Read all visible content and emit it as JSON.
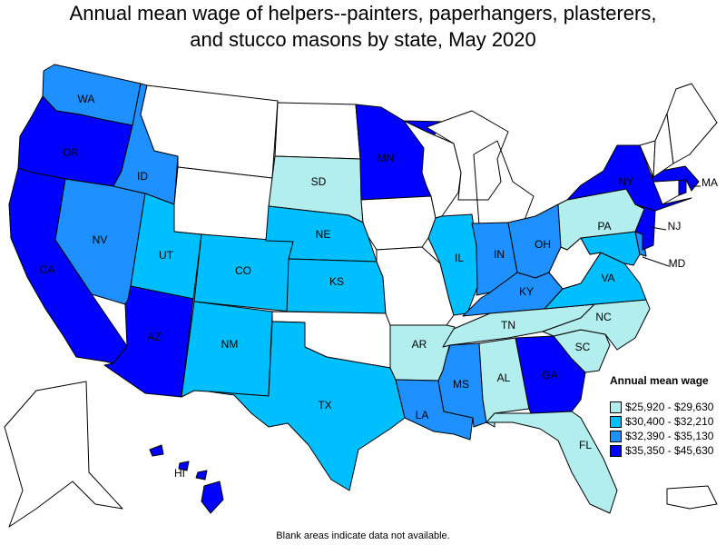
{
  "title_lines": [
    "Annual mean wage of helpers--painters, paperhangers, plasterers,",
    "and stucco masons by state, May 2020"
  ],
  "legend": {
    "title": "Annual mean wage",
    "items": [
      {
        "label": "$25,920 - $29,630",
        "color": "#b2eeee"
      },
      {
        "label": "$30,400 - $32,210",
        "color": "#00bfff"
      },
      {
        "label": "$32,390 - $35,130",
        "color": "#1e90ff"
      },
      {
        "label": "$35,350 - $45,630",
        "color": "#0000ff"
      }
    ]
  },
  "no_data_color": "#ffffff",
  "footnote": "Blank areas indicate data not available.",
  "states": [
    {
      "abbr": "WA",
      "class": 2
    },
    {
      "abbr": "OR",
      "class": 3
    },
    {
      "abbr": "CA",
      "class": 3
    },
    {
      "abbr": "NV",
      "class": 2
    },
    {
      "abbr": "ID",
      "class": 2
    },
    {
      "abbr": "MT",
      "class": null
    },
    {
      "abbr": "WY",
      "class": null
    },
    {
      "abbr": "UT",
      "class": 1
    },
    {
      "abbr": "AZ",
      "class": 3
    },
    {
      "abbr": "CO",
      "class": 1
    },
    {
      "abbr": "NM",
      "class": 1
    },
    {
      "abbr": "ND",
      "class": null
    },
    {
      "abbr": "SD",
      "class": 0
    },
    {
      "abbr": "NE",
      "class": 1
    },
    {
      "abbr": "KS",
      "class": 1
    },
    {
      "abbr": "OK",
      "class": null
    },
    {
      "abbr": "TX",
      "class": 1
    },
    {
      "abbr": "MN",
      "class": 3
    },
    {
      "abbr": "IA",
      "class": null
    },
    {
      "abbr": "MO",
      "class": null
    },
    {
      "abbr": "AR",
      "class": 0
    },
    {
      "abbr": "LA",
      "class": 2
    },
    {
      "abbr": "WI",
      "class": null
    },
    {
      "abbr": "IL",
      "class": 1
    },
    {
      "abbr": "MI",
      "class": null
    },
    {
      "abbr": "IN",
      "class": 2
    },
    {
      "abbr": "OH",
      "class": 2
    },
    {
      "abbr": "KY",
      "class": 2
    },
    {
      "abbr": "TN",
      "class": 0
    },
    {
      "abbr": "MS",
      "class": 2
    },
    {
      "abbr": "AL",
      "class": 0
    },
    {
      "abbr": "GA",
      "class": 3
    },
    {
      "abbr": "FL",
      "class": 0
    },
    {
      "abbr": "SC",
      "class": 0
    },
    {
      "abbr": "NC",
      "class": 0
    },
    {
      "abbr": "VA",
      "class": 1
    },
    {
      "abbr": "WV",
      "class": null
    },
    {
      "abbr": "MD",
      "class": 1
    },
    {
      "abbr": "DE",
      "class": 2
    },
    {
      "abbr": "PA",
      "class": 0
    },
    {
      "abbr": "NJ",
      "class": 3
    },
    {
      "abbr": "NY",
      "class": 3
    },
    {
      "abbr": "CT",
      "class": null
    },
    {
      "abbr": "RI",
      "class": 3
    },
    {
      "abbr": "MA",
      "class": 3
    },
    {
      "abbr": "VT",
      "class": null
    },
    {
      "abbr": "NH",
      "class": null
    },
    {
      "abbr": "ME",
      "class": null
    },
    {
      "abbr": "AK",
      "class": null
    },
    {
      "abbr": "HI",
      "class": 3
    },
    {
      "abbr": "PR",
      "class": null
    }
  ],
  "labels": [
    "WA",
    "OR",
    "CA",
    "NV",
    "ID",
    "UT",
    "AZ",
    "CO",
    "NM",
    "SD",
    "NE",
    "KS",
    "TX",
    "MN",
    "AR",
    "LA",
    "IL",
    "IN",
    "OH",
    "KY",
    "TN",
    "MS",
    "AL",
    "GA",
    "FL",
    "SC",
    "NC",
    "VA",
    "PA",
    "NY",
    "NJ",
    "MA",
    "MD",
    "HI"
  ]
}
